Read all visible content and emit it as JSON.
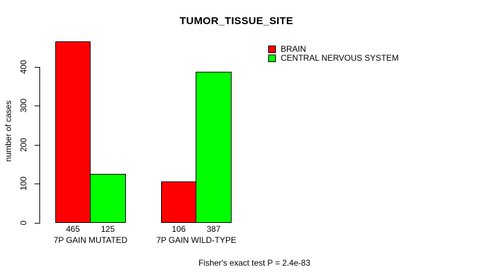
{
  "chart_data": {
    "type": "bar",
    "title": "TUMOR_TISSUE_SITE",
    "ylabel": "number of cases",
    "xlabel": "",
    "categories": [
      "7P GAIN MUTATED",
      "7P GAIN WILD-TYPE"
    ],
    "series": [
      {
        "name": "BRAIN",
        "color": "#ff0000",
        "values": [
          465,
          106
        ]
      },
      {
        "name": "CENTRAL NERVOUS SYSTEM",
        "color": "#00ff00",
        "values": [
          125,
          387
        ]
      }
    ],
    "yticks": [
      0,
      100,
      200,
      300,
      400
    ],
    "ylim": [
      0,
      465
    ],
    "grid": false,
    "legend_position": "top-right",
    "bar_border_color": "#000000",
    "background_color": "#ffffff"
  },
  "footer": {
    "text": "Fisher's exact test P = 2.4e-83"
  }
}
